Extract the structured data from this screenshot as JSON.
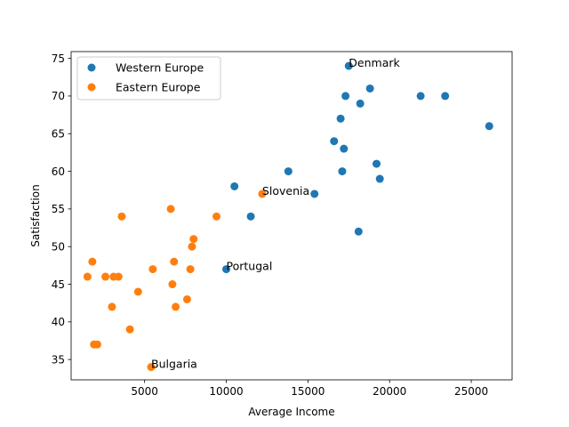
{
  "chart_data": {
    "type": "scatter",
    "title": "",
    "xlabel": "Average Income",
    "ylabel": "Satisfaction",
    "xlim": [
      500,
      27500
    ],
    "ylim": [
      32.3,
      75.9
    ],
    "xticks": [
      5000,
      10000,
      15000,
      20000,
      25000
    ],
    "yticks": [
      35,
      40,
      45,
      50,
      55,
      60,
      65,
      70,
      75
    ],
    "grid": false,
    "legend_position": "top-left",
    "series": [
      {
        "name": "Western Europe",
        "color": "#1f77b4",
        "points": [
          [
            17500,
            74
          ],
          [
            18800,
            71
          ],
          [
            17300,
            70
          ],
          [
            21900,
            70
          ],
          [
            23400,
            70
          ],
          [
            18200,
            69
          ],
          [
            17000,
            67
          ],
          [
            26100,
            66
          ],
          [
            16600,
            64
          ],
          [
            17200,
            63
          ],
          [
            19200,
            61
          ],
          [
            13800,
            60
          ],
          [
            17100,
            60
          ],
          [
            19400,
            59
          ],
          [
            10500,
            58
          ],
          [
            15400,
            57
          ],
          [
            11500,
            54
          ],
          [
            18100,
            52
          ],
          [
            10000,
            47
          ]
        ]
      },
      {
        "name": "Eastern Europe",
        "color": "#ff7f0e",
        "points": [
          [
            12200,
            57
          ],
          [
            6600,
            55
          ],
          [
            3600,
            54
          ],
          [
            9400,
            54
          ],
          [
            8000,
            51
          ],
          [
            7900,
            50
          ],
          [
            1800,
            48
          ],
          [
            6800,
            48
          ],
          [
            5500,
            47
          ],
          [
            7800,
            47
          ],
          [
            1500,
            46
          ],
          [
            2600,
            46
          ],
          [
            3100,
            46
          ],
          [
            3400,
            46
          ],
          [
            6700,
            45
          ],
          [
            4600,
            44
          ],
          [
            7600,
            43
          ],
          [
            3000,
            42
          ],
          [
            6900,
            42
          ],
          [
            4100,
            39
          ],
          [
            1900,
            37
          ],
          [
            2100,
            37
          ],
          [
            5400,
            34
          ]
        ]
      }
    ],
    "annotations": [
      {
        "text": "Denmark",
        "x": 17500,
        "y": 74
      },
      {
        "text": "Slovenia",
        "x": 12200,
        "y": 57
      },
      {
        "text": "Portugal",
        "x": 10000,
        "y": 47
      },
      {
        "text": "Bulgaria",
        "x": 5400,
        "y": 34
      }
    ]
  }
}
